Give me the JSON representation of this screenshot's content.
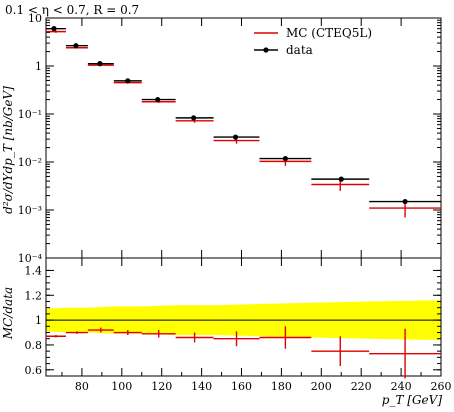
{
  "title": "0.1 < η < 0.7, R = 0.7",
  "colors": {
    "mc": "#e00000",
    "data": "#000000",
    "band": "#ffff00",
    "ratio_line": "#000000"
  },
  "legend": {
    "mc_label": "MC (CTEQ5L)",
    "data_label": "data"
  },
  "chart_data": [
    {
      "type": "scatter",
      "panel": "main",
      "title": "0.1 < η < 0.7, R = 0.7",
      "ylabel": "d²σ/dYdp_T [nb/GeV]",
      "yscale": "log",
      "ylim": [
        0.0001,
        10
      ],
      "xlim": [
        62,
        260
      ],
      "ytick_labels": [
        "10",
        "1",
        "10⁻¹",
        "10⁻²",
        "10⁻³",
        "10⁻⁴"
      ],
      "bins": [
        [
          62,
          72
        ],
        [
          72,
          83
        ],
        [
          83,
          96
        ],
        [
          96,
          110
        ],
        [
          110,
          127
        ],
        [
          127,
          146
        ],
        [
          146,
          169
        ],
        [
          169,
          195
        ],
        [
          195,
          224
        ],
        [
          224,
          260
        ]
      ],
      "series": [
        {
          "name": "MC (CTEQ5L)",
          "values": [
            5.2,
            2.4,
            1.04,
            0.45,
            0.18,
            0.072,
            0.028,
            0.0103,
            0.0034,
            0.0011
          ],
          "err_lo": [
            0.3,
            0.1,
            0.05,
            0.02,
            0.01,
            0.006,
            0.004,
            0.002,
            0.0009,
            0.0004
          ],
          "err_hi": [
            0.3,
            0.1,
            0.05,
            0.02,
            0.01,
            0.006,
            0.004,
            0.002,
            0.0009,
            0.0004
          ]
        },
        {
          "name": "data",
          "x": [
            66,
            77,
            89,
            103,
            118,
            136,
            157,
            182,
            210,
            242
          ],
          "values": [
            6.0,
            2.65,
            1.12,
            0.49,
            0.2,
            0.083,
            0.033,
            0.0118,
            0.0044,
            0.0015
          ]
        }
      ]
    },
    {
      "type": "scatter",
      "panel": "ratio",
      "ylabel": "MC/data",
      "xlabel": "p_T [GeV]",
      "ylim": [
        0.55,
        1.5
      ],
      "xlim": [
        62,
        260
      ],
      "ytick_labels": [
        "1.4",
        "1.2",
        "1",
        "0.8",
        "0.6"
      ],
      "xtick_labels": [
        "80",
        "100",
        "120",
        "140",
        "160",
        "180",
        "200",
        "220",
        "240",
        "260"
      ],
      "xticks": [
        80,
        100,
        120,
        140,
        160,
        180,
        200,
        220,
        240,
        260
      ],
      "reference_line": 1.0,
      "band": {
        "x": [
          62,
          72,
          83,
          96,
          110,
          127,
          146,
          169,
          195,
          224,
          260
        ],
        "lo": [
          0.91,
          0.9,
          0.9,
          0.89,
          0.89,
          0.88,
          0.88,
          0.87,
          0.86,
          0.85,
          0.84
        ],
        "hi": [
          1.09,
          1.1,
          1.1,
          1.11,
          1.11,
          1.12,
          1.12,
          1.13,
          1.14,
          1.15,
          1.16
        ]
      },
      "bins": [
        [
          62,
          72
        ],
        [
          72,
          83
        ],
        [
          83,
          96
        ],
        [
          96,
          110
        ],
        [
          110,
          127
        ],
        [
          127,
          146
        ],
        [
          146,
          169
        ],
        [
          169,
          195
        ],
        [
          195,
          224
        ],
        [
          224,
          260
        ]
      ],
      "series": [
        {
          "name": "MC (CTEQ5L)",
          "values": [
            0.87,
            0.9,
            0.92,
            0.9,
            0.89,
            0.86,
            0.85,
            0.86,
            0.75,
            0.73
          ],
          "err_lo": [
            0.01,
            0.01,
            0.02,
            0.02,
            0.03,
            0.04,
            0.06,
            0.09,
            0.12,
            0.2
          ],
          "err_hi": [
            0.01,
            0.01,
            0.02,
            0.02,
            0.03,
            0.04,
            0.06,
            0.09,
            0.12,
            0.2
          ]
        }
      ]
    }
  ]
}
